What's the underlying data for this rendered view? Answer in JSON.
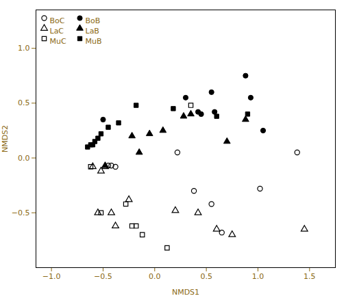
{
  "chart_data": {
    "type": "scatter",
    "xlabel": "NMDS1",
    "ylabel": "NMDS2",
    "color": "#8B6914",
    "xlim": [
      -1.15,
      1.75
    ],
    "ylim": [
      -1.0,
      1.35
    ],
    "xticks": [
      {
        "value": -1.0,
        "label": "−1.0"
      },
      {
        "value": -0.5,
        "label": "−0.5"
      },
      {
        "value": 0.0,
        "label": "0.0"
      },
      {
        "value": 0.5,
        "label": "0.5"
      },
      {
        "value": 1.0,
        "label": "1.0"
      },
      {
        "value": 1.5,
        "label": "1.5"
      }
    ],
    "yticks": [
      {
        "value": -0.5,
        "label": "−0.5"
      },
      {
        "value": 0.0,
        "label": "0.0"
      },
      {
        "value": 0.5,
        "label": "0.5"
      },
      {
        "value": 1.0,
        "label": "1.0"
      }
    ],
    "grid": false,
    "legend": "upper left",
    "series": [
      {
        "name": "BoC",
        "color": "#000000",
        "marker": "open-circle",
        "x": [
          -0.45,
          -0.42,
          -0.38,
          0.22,
          0.38,
          0.55,
          0.65,
          1.02,
          1.38
        ],
        "values": [
          -0.07,
          -0.07,
          -0.08,
          0.05,
          -0.3,
          -0.42,
          -0.68,
          -0.28,
          0.05
        ]
      },
      {
        "name": "BoB",
        "color": "#000000",
        "marker": "circle",
        "x": [
          -0.5,
          0.3,
          0.42,
          0.45,
          0.55,
          0.58,
          0.88,
          0.93,
          1.05
        ],
        "values": [
          0.35,
          0.55,
          0.42,
          0.4,
          0.6,
          0.42,
          0.75,
          0.55,
          0.25
        ]
      },
      {
        "name": "LaC",
        "color": "#000000",
        "marker": "open-triangle",
        "x": [
          -0.6,
          -0.55,
          -0.52,
          -0.48,
          -0.42,
          -0.38,
          -0.25,
          0.2,
          0.42,
          0.6,
          0.75,
          1.45
        ],
        "values": [
          -0.08,
          -0.5,
          -0.12,
          -0.08,
          -0.5,
          -0.62,
          -0.38,
          -0.48,
          -0.5,
          -0.65,
          -0.7,
          -0.65
        ]
      },
      {
        "name": "LaB",
        "color": "#000000",
        "marker": "triangle",
        "x": [
          -0.48,
          -0.22,
          -0.15,
          -0.05,
          0.08,
          0.28,
          0.35,
          0.7,
          0.88
        ],
        "values": [
          -0.07,
          0.2,
          0.05,
          0.22,
          0.25,
          0.38,
          0.4,
          0.15,
          0.35
        ]
      },
      {
        "name": "MuC",
        "color": "#000000",
        "marker": "open-square",
        "x": [
          -0.62,
          -0.52,
          -0.28,
          -0.22,
          -0.18,
          -0.12,
          0.12,
          0.35
        ],
        "values": [
          -0.08,
          -0.5,
          -0.42,
          -0.62,
          -0.62,
          -0.7,
          -0.82,
          0.48
        ]
      },
      {
        "name": "MuB",
        "color": "#000000",
        "marker": "square",
        "x": [
          -0.65,
          -0.62,
          -0.6,
          -0.58,
          -0.55,
          -0.52,
          -0.45,
          -0.35,
          -0.18,
          0.18,
          0.6,
          0.9
        ],
        "values": [
          0.1,
          0.12,
          0.12,
          0.15,
          0.18,
          0.22,
          0.28,
          0.32,
          0.48,
          0.45,
          0.38,
          0.4
        ]
      }
    ]
  }
}
